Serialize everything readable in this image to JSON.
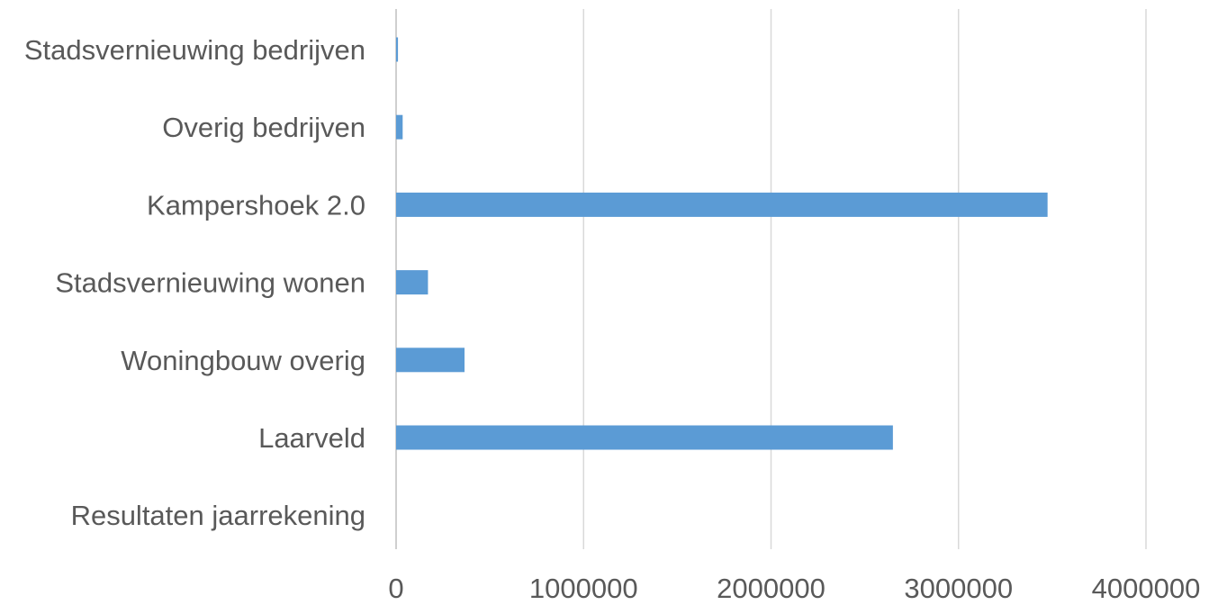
{
  "colors": {
    "bar": "#5b9bd5",
    "gridline": "#d9d9d9",
    "text": "#595959"
  },
  "chart_data": {
    "type": "bar",
    "orientation": "horizontal",
    "categories": [
      "Stadsvernieuwing bedrijven",
      "Overig bedrijven",
      "Kampershoek 2.0",
      "Stadsvernieuwing wonen",
      "Woningbouw overig",
      "Laarveld",
      "Resultaten jaarrekening"
    ],
    "values": [
      10000,
      35000,
      3475000,
      170000,
      365000,
      2650000,
      0
    ],
    "xlim": [
      0,
      4000000
    ],
    "xticks": [
      "0",
      "1000000",
      "2000000",
      "3000000",
      "4000000"
    ],
    "grid": true,
    "legend": "none"
  }
}
